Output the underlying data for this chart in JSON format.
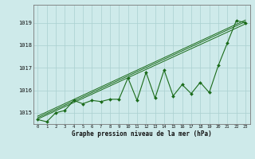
{
  "title": "Graphe pression niveau de la mer (hPa)",
  "bg_color": "#ceeaea",
  "grid_color": "#aad0d0",
  "line_color": "#1a6b1a",
  "marker_color": "#1a6b1a",
  "x_labels": [
    "0",
    "1",
    "2",
    "3",
    "4",
    "5",
    "6",
    "7",
    "8",
    "9",
    "10",
    "11",
    "12",
    "13",
    "14",
    "15",
    "16",
    "17",
    "18",
    "19",
    "20",
    "21",
    "22",
    "23"
  ],
  "ylim": [
    1014.5,
    1019.8
  ],
  "yticks": [
    1015,
    1016,
    1017,
    1018,
    1019
  ],
  "hours": [
    0,
    1,
    2,
    3,
    4,
    5,
    6,
    7,
    8,
    9,
    10,
    11,
    12,
    13,
    14,
    15,
    16,
    17,
    18,
    19,
    20,
    21,
    22,
    23
  ],
  "pressure": [
    1014.7,
    1014.6,
    1015.0,
    1015.1,
    1015.55,
    1015.4,
    1015.55,
    1015.5,
    1015.6,
    1015.6,
    1016.55,
    1015.55,
    1016.8,
    1015.65,
    1016.9,
    1015.75,
    1016.25,
    1015.85,
    1016.35,
    1015.9,
    1017.1,
    1018.1,
    1019.1,
    1019.0
  ],
  "trend_line1": [
    [
      0,
      23
    ],
    [
      1014.72,
      1018.95
    ]
  ],
  "trend_line2": [
    [
      0,
      23
    ],
    [
      1014.78,
      1019.05
    ]
  ],
  "trend_line3": [
    [
      0,
      23
    ],
    [
      1014.85,
      1019.12
    ]
  ],
  "figwidth": 3.2,
  "figheight": 2.0,
  "dpi": 100
}
